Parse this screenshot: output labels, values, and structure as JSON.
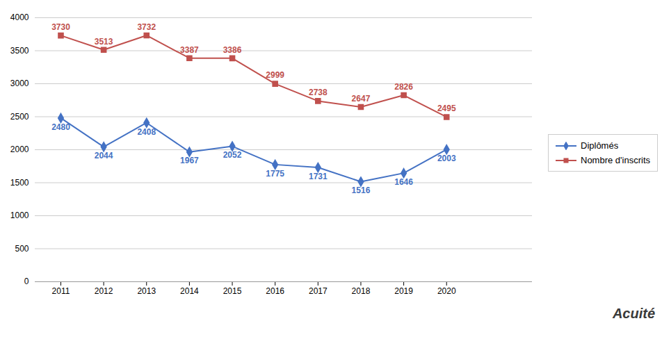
{
  "chart_data": {
    "type": "line",
    "x": [
      2011,
      2012,
      2013,
      2014,
      2015,
      2016,
      2017,
      2018,
      2019,
      2020
    ],
    "series": [
      {
        "name": "Diplômés",
        "color": "#4472C4",
        "marker": "diamond",
        "values": [
          2480,
          2044,
          2408,
          1967,
          2052,
          1775,
          1731,
          1516,
          1646,
          2003
        ]
      },
      {
        "name": "Nombre d'inscrits",
        "color": "#C0504D",
        "marker": "square",
        "values": [
          3730,
          3513,
          3732,
          3387,
          3386,
          2999,
          2738,
          2647,
          2826,
          2495
        ]
      }
    ],
    "xlim": [
      2010.4,
      2022.0
    ],
    "xticks": [
      2011,
      2012,
      2013,
      2014,
      2015,
      2016,
      2017,
      2018,
      2019,
      2020
    ],
    "ylim": [
      0,
      4000
    ],
    "yticks": [
      0,
      500,
      1000,
      1500,
      2000,
      2500,
      3000,
      3500,
      4000
    ],
    "grid": true,
    "legend": "right",
    "data_labels": true,
    "annotations": [
      "Acuité"
    ]
  }
}
